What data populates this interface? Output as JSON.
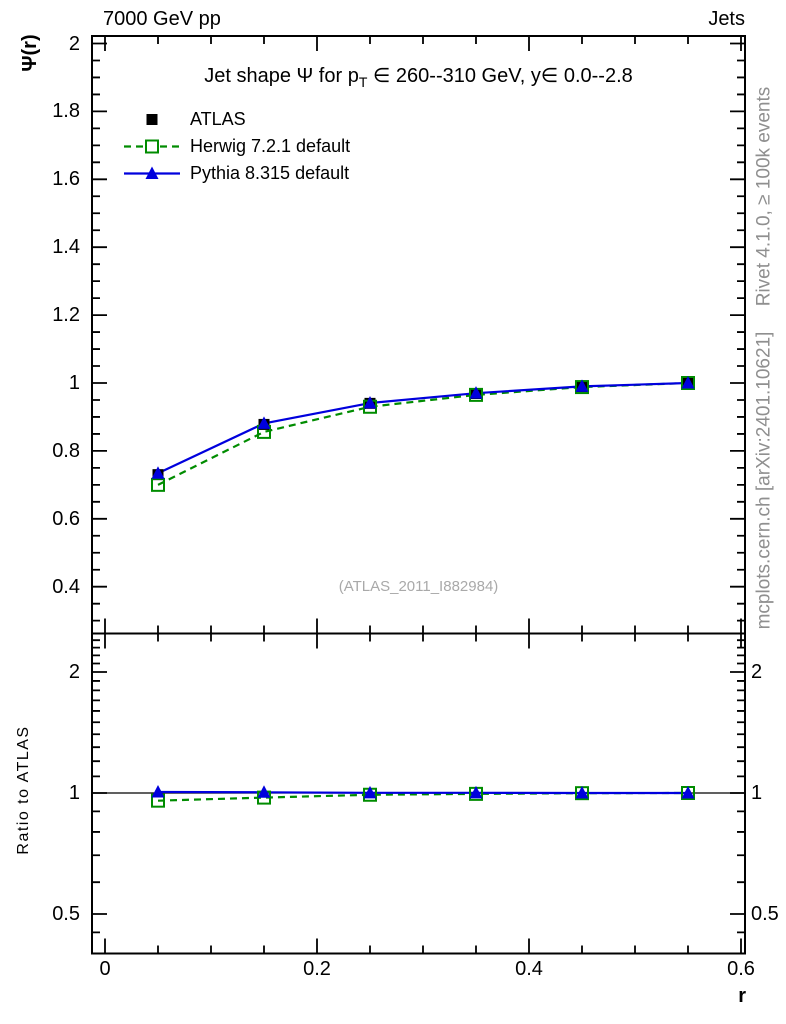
{
  "header": {
    "left": "7000 GeV pp",
    "right": "Jets"
  },
  "main_panel": {
    "y_axis_label": "Ψ(r)",
    "title": {
      "pre": "Jet shape Ψ for p",
      "sub": "T",
      "post": " ∈ 260--310 GeV, y∈ 0.0--2.8"
    },
    "watermark": "(ATLAS_2011_I882984)"
  },
  "ratio_panel": {
    "y_axis_label": "Ratio to ATLAS"
  },
  "x_axis_label": "r",
  "side_notes": {
    "top": "Rivet 4.1.0, ≥ 100k events",
    "bottom": "mcplots.cern.ch [arXiv:2401.10621]"
  },
  "legend": {
    "items": [
      {
        "label": "ATLAS",
        "marker": "filled-square",
        "line": "none",
        "color": "#000000"
      },
      {
        "label": "Herwig 7.2.1 default",
        "marker": "open-square",
        "line": "dashed",
        "color": "#008C00"
      },
      {
        "label": "Pythia 8.315 default",
        "marker": "filled-triangle",
        "line": "solid",
        "color": "#0000DD"
      }
    ]
  },
  "chart_data": {
    "type": "line",
    "title": "Jet shape Ψ for pT ∈ 260--310 GeV, y∈ 0.0--2.8",
    "x": [
      0.05,
      0.15,
      0.25,
      0.35,
      0.45,
      0.55
    ],
    "xlabel": "r",
    "xlim": [
      0,
      0.6
    ],
    "x_major_ticks": [
      0,
      0.2,
      0.4,
      0.6
    ],
    "x_minor_step": 0.05,
    "grid": false,
    "legend_position": "top-left",
    "main": {
      "ylabel": "Ψ(r)",
      "scale": "linear",
      "ylim": [
        0.26,
        2.02
      ],
      "y_major_ticks": [
        2,
        1.8,
        1.6,
        1.4,
        1.2,
        1,
        0.8,
        0.6,
        0.4
      ],
      "y_minor_step": 0.05,
      "series": [
        {
          "name": "ATLAS",
          "color": "#000000",
          "marker": "filled-square",
          "line": "none",
          "values": [
            0.73,
            0.878,
            0.94,
            0.969,
            0.989,
            1.0
          ]
        },
        {
          "name": "Herwig 7.2.1 default",
          "color": "#008C00",
          "marker": "open-square",
          "line": "dashed",
          "values": [
            0.7,
            0.856,
            0.93,
            0.965,
            0.988,
            1.0
          ]
        },
        {
          "name": "Pythia 8.315 default",
          "color": "#0000DD",
          "marker": "filled-triangle",
          "line": "solid",
          "values": [
            0.734,
            0.881,
            0.941,
            0.97,
            0.99,
            1.0
          ]
        }
      ]
    },
    "ratio": {
      "ylabel": "Ratio to ATLAS",
      "scale": "log",
      "ylim": [
        0.4,
        2.47
      ],
      "y_major_ticks": [
        2,
        1,
        0.5
      ],
      "reference_line": 1,
      "series": [
        {
          "name": "Herwig 7.2.1 default",
          "color": "#008C00",
          "marker": "open-square",
          "line": "dashed",
          "values": [
            0.957,
            0.974,
            0.99,
            0.995,
            0.999,
            1.0
          ]
        },
        {
          "name": "Pythia 8.315 default",
          "color": "#0000DD",
          "marker": "filled-triangle",
          "line": "solid",
          "values": [
            1.006,
            1.004,
            1.001,
            1.001,
            1.0,
            1.0
          ]
        }
      ]
    }
  }
}
